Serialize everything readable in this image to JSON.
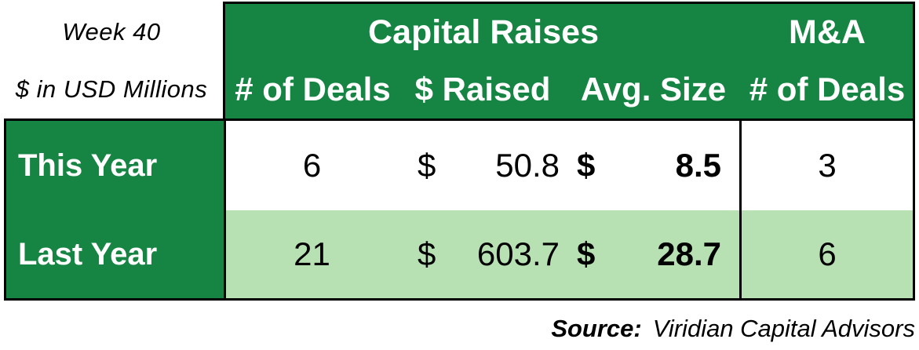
{
  "meta": {
    "week_label": "Week 40",
    "units_label": "$ in USD Millions"
  },
  "header": {
    "capital_raises_label": "Capital Raises",
    "ma_label": "M&A",
    "columns": [
      "# of Deals",
      "$ Raised",
      "Avg. Size",
      "# of Deals"
    ]
  },
  "rows": [
    {
      "label": "This Year",
      "deals": "6",
      "raised_currency": "$",
      "raised": "50.8",
      "avg_currency": "$",
      "avg_size": "8.5",
      "ma_deals": "3"
    },
    {
      "label": "Last Year",
      "deals": "21",
      "raised_currency": "$",
      "raised": "603.7",
      "avg_currency": "$",
      "avg_size": "28.7",
      "ma_deals": "6"
    }
  ],
  "source": {
    "label": "Source:",
    "text": "Viridian Capital Advisors"
  },
  "colors": {
    "header_green": "#168443",
    "row_alt_green": "#b7e1b3",
    "border": "#000000"
  },
  "chart_data": {
    "type": "table",
    "title": "Week 40",
    "units": "$ in USD Millions",
    "column_groups": [
      {
        "label": "Capital Raises",
        "columns": [
          "# of Deals",
          "$ Raised",
          "Avg. Size"
        ]
      },
      {
        "label": "M&A",
        "columns": [
          "# of Deals"
        ]
      }
    ],
    "rows": [
      {
        "label": "This Year",
        "capital_raises_num_deals": 6,
        "capital_raises_dollars_raised_usd_m": 50.8,
        "capital_raises_avg_size_usd_m": 8.5,
        "ma_num_deals": 3
      },
      {
        "label": "Last Year",
        "capital_raises_num_deals": 21,
        "capital_raises_dollars_raised_usd_m": 603.7,
        "capital_raises_avg_size_usd_m": 28.7,
        "ma_num_deals": 6
      }
    ],
    "source": "Viridian Capital Advisors"
  }
}
